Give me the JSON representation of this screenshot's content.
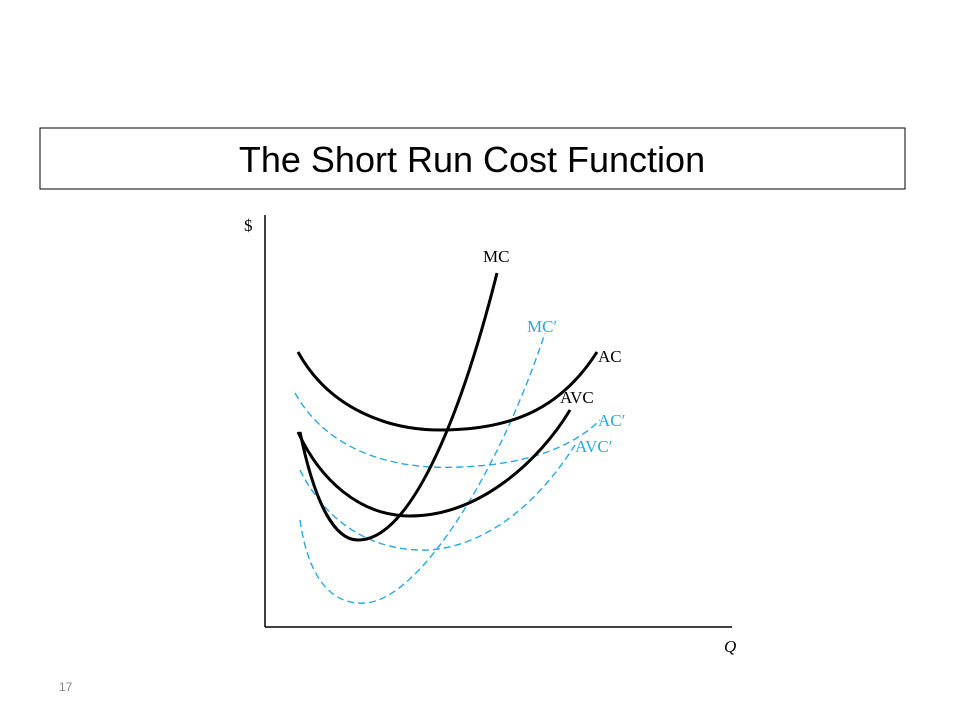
{
  "header": {
    "title": "The Short Run Cost Function"
  },
  "diagram": {
    "y_axis_label": "$",
    "x_axis_label": "Q",
    "curves": [
      {
        "label": "MC"
      },
      {
        "label": "MC′"
      },
      {
        "label": "AC"
      },
      {
        "label": "AVC"
      },
      {
        "label": "AC′"
      },
      {
        "label": "AVC′"
      }
    ]
  },
  "footer": {
    "slide_number": "17"
  }
}
